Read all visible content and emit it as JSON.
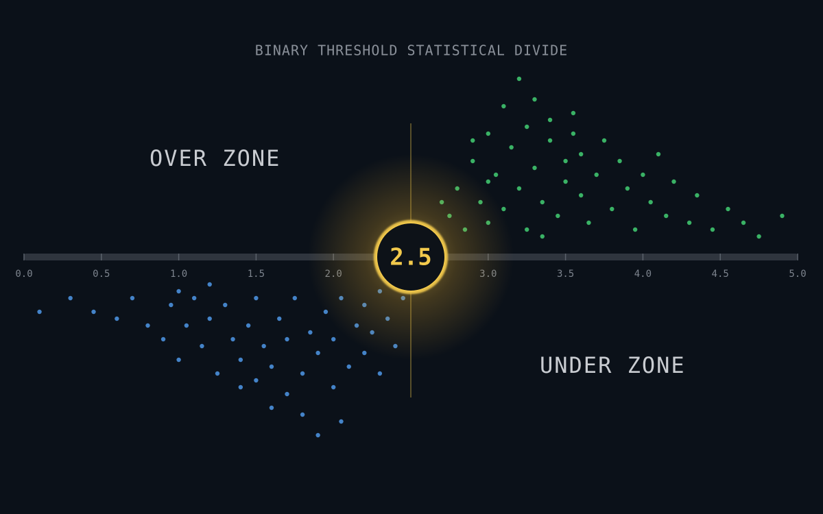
{
  "chart_data": {
    "type": "scatter",
    "title": "BINARY THRESHOLD STATISTICAL DIVIDE",
    "annotations": [
      "OVER ZONE",
      "UNDER ZONE"
    ],
    "threshold": 2.5,
    "threshold_color": "#f2c94c",
    "xlim": [
      0,
      5
    ],
    "ylim": [
      -1.5,
      1.5
    ],
    "xticks": [
      {
        "value": 0,
        "label": "0.0"
      },
      0.5,
      {
        "value": 1,
        "label": "1.0"
      },
      1.5,
      {
        "value": 2,
        "label": "2.0"
      },
      {
        "value": 3,
        "label": "3.0"
      },
      3.5,
      {
        "value": 4,
        "label": "4.0"
      },
      4.5,
      {
        "value": 5,
        "label": "5.0"
      }
    ],
    "series": [
      {
        "color": "#3fc46e",
        "x": [
          2.75,
          2.8,
          2.85,
          2.9,
          2.95,
          3.0,
          3.0,
          3.05,
          3.1,
          3.1,
          3.15,
          3.2,
          3.2,
          3.25,
          3.25,
          3.3,
          3.3,
          3.35,
          3.4,
          3.4,
          3.45,
          3.5,
          3.5,
          3.55,
          3.6,
          3.6,
          3.65,
          3.7,
          3.75,
          3.8,
          3.85,
          3.9,
          3.95,
          4.0,
          4.05,
          4.1,
          4.15,
          4.2,
          4.3,
          4.35,
          4.45,
          4.55,
          4.65,
          4.75,
          4.9,
          2.7,
          3.35,
          3.55,
          3.0,
          2.9
        ],
        "y": [
          0.3,
          0.5,
          0.2,
          0.7,
          0.4,
          0.9,
          0.25,
          0.6,
          1.1,
          0.35,
          0.8,
          1.3,
          0.5,
          0.95,
          0.2,
          1.15,
          0.65,
          0.4,
          0.85,
          1.0,
          0.3,
          0.7,
          0.55,
          0.9,
          0.45,
          0.75,
          0.25,
          0.6,
          0.85,
          0.35,
          0.7,
          0.5,
          0.2,
          0.6,
          0.4,
          0.75,
          0.3,
          0.55,
          0.25,
          0.45,
          0.2,
          0.35,
          0.25,
          0.15,
          0.3,
          0.4,
          0.15,
          1.05,
          0.55,
          0.85
        ]
      },
      {
        "color": "#4a90dc",
        "x": [
          0.1,
          0.3,
          0.45,
          0.6,
          0.7,
          0.8,
          0.9,
          0.95,
          1.0,
          1.05,
          1.1,
          1.15,
          1.2,
          1.25,
          1.3,
          1.35,
          1.4,
          1.45,
          1.5,
          1.5,
          1.55,
          1.6,
          1.65,
          1.7,
          1.7,
          1.75,
          1.8,
          1.8,
          1.85,
          1.9,
          1.9,
          1.95,
          2.0,
          2.0,
          2.05,
          2.05,
          2.1,
          2.15,
          2.2,
          2.2,
          2.25,
          2.3,
          2.3,
          2.35,
          2.4,
          2.45,
          1.6,
          1.4,
          1.2,
          1.0
        ],
        "y": [
          -0.4,
          -0.3,
          -0.4,
          -0.45,
          -0.3,
          -0.5,
          -0.6,
          -0.35,
          -0.75,
          -0.5,
          -0.3,
          -0.65,
          -0.45,
          -0.85,
          -0.35,
          -0.6,
          -0.75,
          -0.5,
          -0.9,
          -0.3,
          -0.65,
          -0.8,
          -0.45,
          -1.0,
          -0.6,
          -0.3,
          -0.85,
          -1.15,
          -0.55,
          -0.7,
          -1.3,
          -0.4,
          -0.95,
          -0.6,
          -1.2,
          -0.3,
          -0.8,
          -0.5,
          -0.7,
          -0.35,
          -0.55,
          -0.85,
          -0.25,
          -0.45,
          -0.65,
          -0.3,
          -1.1,
          -0.95,
          -0.2,
          -0.25
        ]
      }
    ]
  }
}
